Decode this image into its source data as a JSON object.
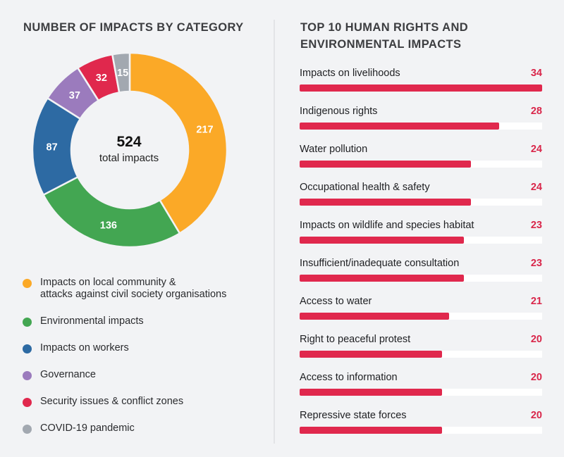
{
  "chart_data": [
    {
      "type": "pie",
      "title": "NUMBER OF IMPACTS BY CATEGORY",
      "variant": "donut",
      "center": {
        "value": "524",
        "label": "total impacts"
      },
      "total": 524,
      "slices": [
        {
          "label": "Impacts on local community &\nattacks against civil society organisations",
          "value": 217,
          "color": "#fba927"
        },
        {
          "label": "Environmental impacts",
          "value": 136,
          "color": "#43a652"
        },
        {
          "label": "Impacts on workers",
          "value": 87,
          "color": "#2d6aa3"
        },
        {
          "label": "Governance",
          "value": 37,
          "color": "#9b7bbd"
        },
        {
          "label": "Security issues & conflict zones",
          "value": 32,
          "color": "#e0284d"
        },
        {
          "label": "COVID-19 pandemic",
          "value": 15,
          "color": "#a2a8b0"
        }
      ],
      "legend_position": "bottom"
    },
    {
      "type": "bar",
      "orientation": "horizontal",
      "title": "TOP 10 HUMAN RIGHTS AND ENVIRONMENTAL IMPACTS",
      "bar_color": "#e0284d",
      "value_color": "#d9264a",
      "max": 34,
      "categories": [
        "Impacts on livelihoods",
        "Indigenous rights",
        "Water pollution",
        "Occupational health & safety",
        "Impacts on wildlife and species habitat",
        "Insufficient/inadequate consultation",
        "Access to water",
        "Right to peaceful protest",
        "Access to information",
        "Repressive state forces"
      ],
      "values": [
        34,
        28,
        24,
        24,
        23,
        23,
        21,
        20,
        20,
        20
      ]
    }
  ]
}
